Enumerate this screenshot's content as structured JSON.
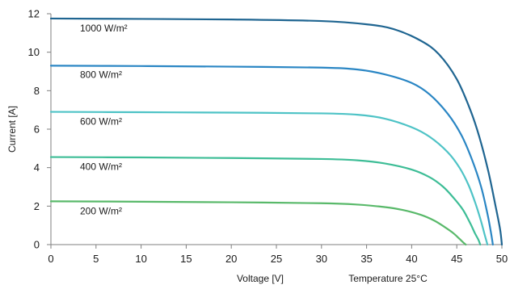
{
  "chart_data": {
    "type": "line",
    "title": "",
    "xlabel": "Voltage [V]",
    "ylabel": "Current [A]",
    "note": "Temperature 25°C",
    "xlim": [
      0,
      50
    ],
    "ylim": [
      0,
      12
    ],
    "x_ticks": [
      "0",
      "5",
      "10",
      "15",
      "20",
      "25",
      "30",
      "35",
      "40",
      "45",
      "50"
    ],
    "y_ticks": [
      "0",
      "2",
      "4",
      "6",
      "8",
      "10",
      "12"
    ],
    "grid": false,
    "series": [
      {
        "name": "1000 W/m²",
        "color": "#1f6591",
        "x": [
          0,
          10,
          20,
          30,
          35,
          38,
          41,
          43,
          45,
          46.5,
          47.5,
          48.5,
          49.3,
          49.8,
          50.0
        ],
        "y": [
          11.75,
          11.73,
          11.7,
          11.62,
          11.45,
          11.2,
          10.6,
          9.9,
          8.6,
          7.0,
          5.6,
          3.8,
          2.0,
          0.8,
          0
        ]
      },
      {
        "name": "800 W/m²",
        "color": "#2a86c4",
        "x": [
          0,
          10,
          20,
          30,
          34,
          37,
          40,
          42,
          44,
          45.5,
          46.7,
          47.7,
          48.4,
          48.8,
          49.0
        ],
        "y": [
          9.3,
          9.28,
          9.25,
          9.2,
          9.1,
          8.85,
          8.4,
          7.8,
          6.8,
          5.7,
          4.4,
          3.0,
          1.6,
          0.6,
          0
        ]
      },
      {
        "name": "600 W/m²",
        "color": "#4ec3c6",
        "x": [
          0,
          10,
          20,
          30,
          34,
          37,
          40,
          42,
          44,
          45.3,
          46.3,
          47.1,
          47.7,
          48.1,
          48.4
        ],
        "y": [
          6.9,
          6.88,
          6.86,
          6.82,
          6.75,
          6.55,
          6.1,
          5.6,
          4.8,
          4.0,
          3.1,
          2.1,
          1.2,
          0.5,
          0
        ]
      },
      {
        "name": "400 W/m²",
        "color": "#3dbd96",
        "x": [
          0,
          10,
          20,
          30,
          34,
          37,
          40,
          42,
          43.5,
          44.7,
          45.7,
          46.5,
          47.0,
          47.4,
          47.6
        ],
        "y": [
          4.55,
          4.53,
          4.5,
          4.45,
          4.38,
          4.22,
          3.9,
          3.5,
          3.0,
          2.4,
          1.8,
          1.1,
          0.6,
          0.25,
          0
        ]
      },
      {
        "name": "200 W/m²",
        "color": "#59b96a",
        "x": [
          0,
          10,
          20,
          30,
          34,
          37,
          39,
          41,
          42.5,
          43.7,
          44.6,
          45.3,
          45.7,
          46.0
        ],
        "y": [
          2.25,
          2.23,
          2.2,
          2.15,
          2.08,
          1.95,
          1.8,
          1.55,
          1.25,
          0.9,
          0.6,
          0.3,
          0.12,
          0
        ]
      }
    ]
  }
}
